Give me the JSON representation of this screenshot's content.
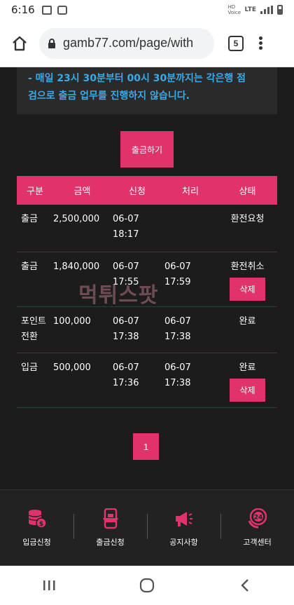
{
  "status": {
    "time": "6:16",
    "network": "LTE",
    "network_sub": "HD Voice"
  },
  "browser": {
    "url": "gamb77.com/page/with",
    "tab_count": "5"
  },
  "notice": {
    "line1": "- 매일 23시 30분부터 00시 30분까지는 각은행 점",
    "line2": "검으로 출금 업무를 진행하지 않습니다."
  },
  "withdraw_button": "출금하기",
  "table": {
    "headers": [
      "구분",
      "금액",
      "신청",
      "처리",
      "상태"
    ],
    "rows": [
      {
        "type": "출금",
        "amount": "2,500,000",
        "req_date": "06-07",
        "req_time": "18:17",
        "proc_date": "",
        "proc_time": "",
        "status": "환전요청",
        "delete": ""
      },
      {
        "type": "출금",
        "amount": "1,840,000",
        "req_date": "06-07",
        "req_time": "17:55",
        "proc_date": "06-07",
        "proc_time": "17:59",
        "status": "환전취소",
        "delete": "삭제"
      },
      {
        "type": "포인트 전환",
        "amount": "100,000",
        "req_date": "06-07",
        "req_time": "17:38",
        "proc_date": "06-07",
        "proc_time": "17:38",
        "status": "완료",
        "delete": ""
      },
      {
        "type": "입금",
        "amount": "500,000",
        "req_date": "06-07",
        "req_time": "17:36",
        "proc_date": "06-07",
        "proc_time": "17:38",
        "status": "완료",
        "delete": "삭제"
      }
    ]
  },
  "pagination": {
    "current": "1"
  },
  "watermark": "먹튀스팟",
  "bottom_nav": [
    {
      "label": "입금신청",
      "icon": "coin-stack-icon"
    },
    {
      "label": "출금신청",
      "icon": "phone-wallet-icon"
    },
    {
      "label": "공지사항",
      "icon": "megaphone-icon"
    },
    {
      "label": "고객센터",
      "icon": "support-24-icon"
    }
  ],
  "colors": {
    "accent": "#e0336b",
    "notice_text": "#3aa9e8",
    "background": "#1c1c1c"
  }
}
